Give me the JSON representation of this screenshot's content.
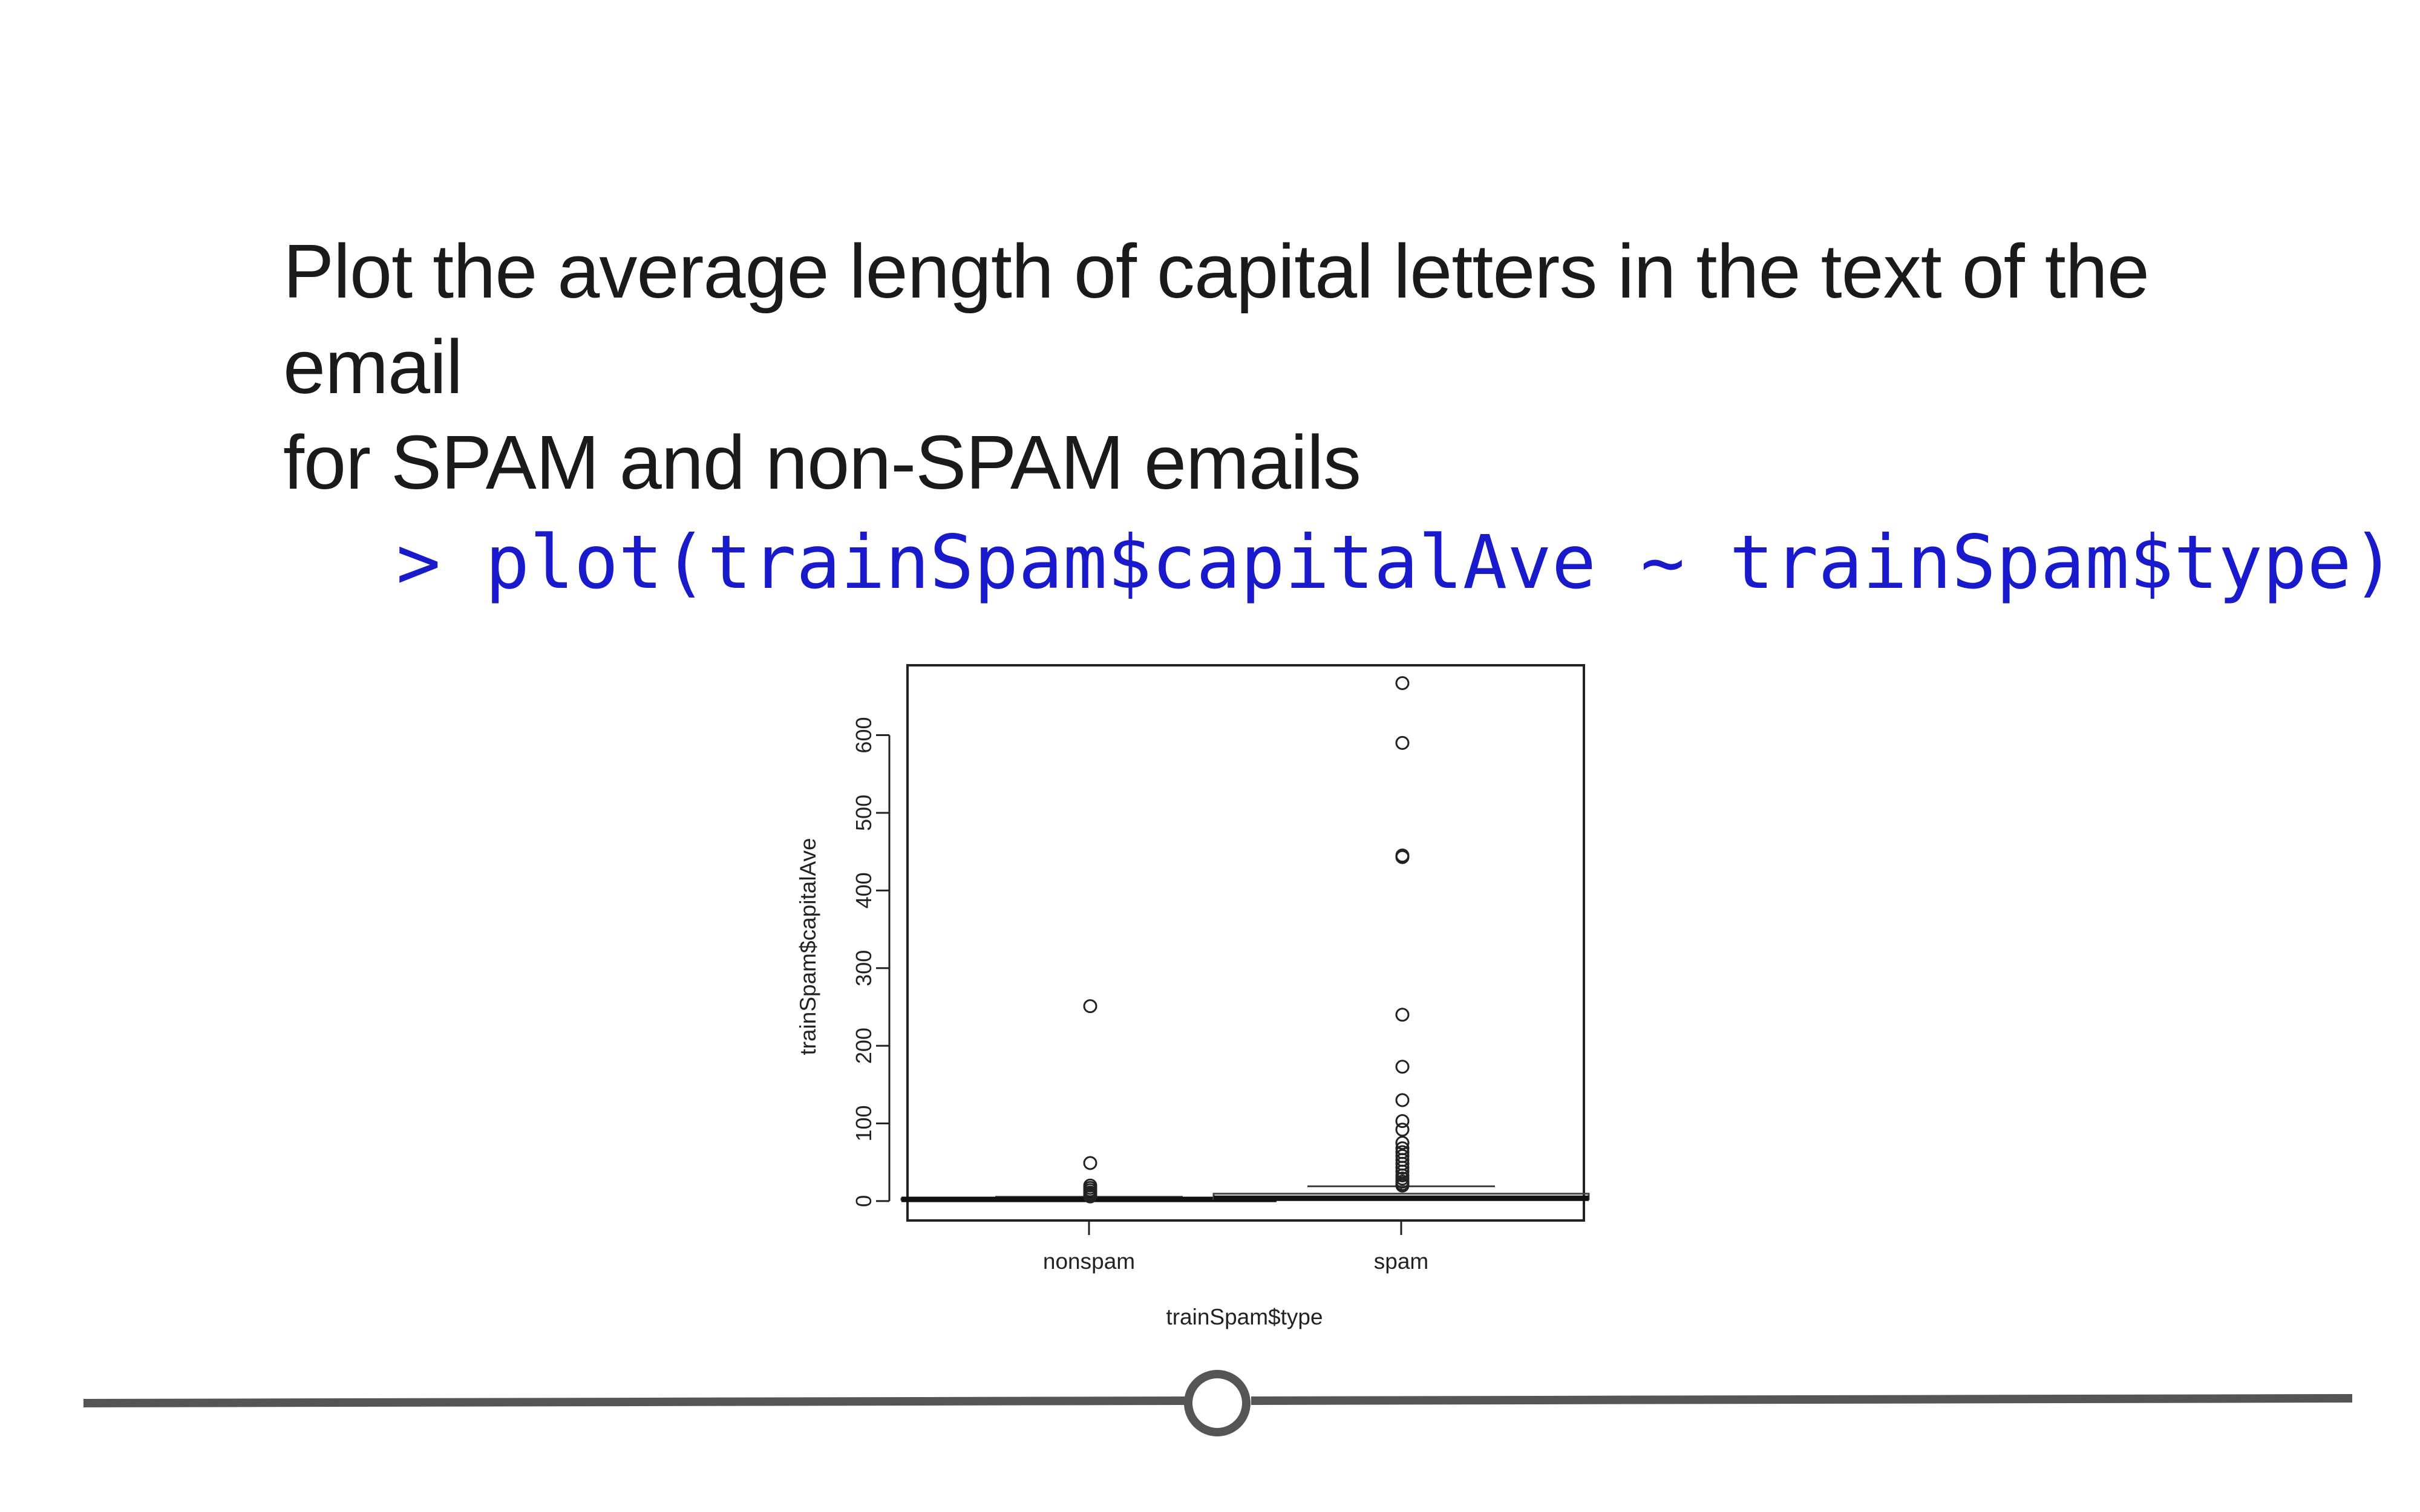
{
  "slide": {
    "title_line1": "Plot the average length of capital letters in the text of the email",
    "title_line2": "for SPAM and non-SPAM emails",
    "code": "> plot(trainSpam$capitalAve ~ trainSpam$type)"
  },
  "colors": {
    "code": "#1a1acd",
    "text": "#1a1a1a",
    "rule": "#555555"
  },
  "chart_data": {
    "type": "box",
    "title": "",
    "xlabel": "trainSpam$type",
    "ylabel": "trainSpam$capitalAve",
    "categories": [
      "nonspam",
      "spam"
    ],
    "ylim": [
      -25,
      690
    ],
    "yticks": [
      0,
      100,
      200,
      300,
      400,
      500,
      600
    ],
    "boxes": [
      {
        "category": "nonspam",
        "q1": 1.6,
        "median": 2.2,
        "q3": 3.2,
        "whisker_low": 1.0,
        "whisker_high": 5.5,
        "outliers": [
          251,
          49,
          20,
          17,
          14,
          11,
          9,
          7,
          6
        ]
      },
      {
        "category": "spam",
        "q1": 2.3,
        "median": 3.6,
        "q3": 9.5,
        "whisker_low": 1.0,
        "whisker_high": 19,
        "outliers": [
          667,
          590,
          445,
          443,
          240,
          173,
          130,
          103,
          92,
          75,
          68,
          63,
          58,
          53,
          48,
          43,
          38,
          33,
          29,
          25,
          22,
          20
        ]
      }
    ]
  }
}
